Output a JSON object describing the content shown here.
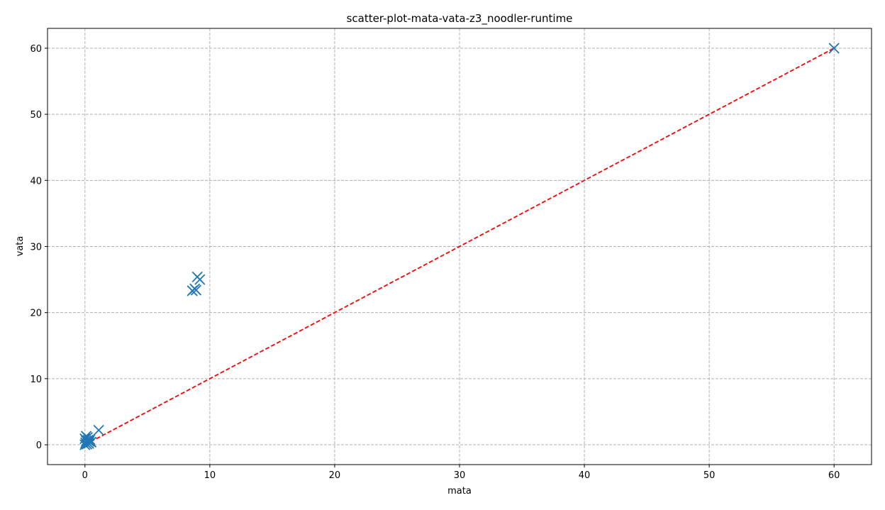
{
  "chart_data": {
    "type": "scatter",
    "title": "scatter-plot-mata-vata-z3_noodler-runtime",
    "xlabel": "mata",
    "ylabel": "vata",
    "xlim": [
      -3,
      63
    ],
    "ylim": [
      -3,
      63
    ],
    "xticks": [
      0,
      10,
      20,
      30,
      40,
      50,
      60
    ],
    "yticks": [
      0,
      10,
      20,
      30,
      40,
      50,
      60
    ],
    "grid": true,
    "grid_style": "dashed",
    "marker": "x",
    "point_color": "#1f77b4",
    "reference_line": {
      "style": "dashed",
      "color": "#ff0000",
      "from": [
        0,
        0
      ],
      "to": [
        60,
        60
      ]
    },
    "points": [
      {
        "x": 0.0,
        "y": 0.0
      },
      {
        "x": 0.05,
        "y": 0.3
      },
      {
        "x": 0.1,
        "y": 0.6
      },
      {
        "x": 0.0,
        "y": 0.9
      },
      {
        "x": 0.2,
        "y": 1.1
      },
      {
        "x": 0.3,
        "y": 0.2
      },
      {
        "x": 0.35,
        "y": 0.5
      },
      {
        "x": 0.4,
        "y": 0.8
      },
      {
        "x": 0.15,
        "y": 0.1
      },
      {
        "x": 0.25,
        "y": 0.7
      },
      {
        "x": 0.5,
        "y": 0.4
      },
      {
        "x": 0.1,
        "y": 1.3
      },
      {
        "x": 1.1,
        "y": 2.2
      },
      {
        "x": 8.6,
        "y": 23.3
      },
      {
        "x": 8.8,
        "y": 23.6
      },
      {
        "x": 8.9,
        "y": 23.4
      },
      {
        "x": 9.0,
        "y": 25.4
      },
      {
        "x": 9.2,
        "y": 25.0
      },
      {
        "x": 60.0,
        "y": 60.0
      }
    ]
  }
}
